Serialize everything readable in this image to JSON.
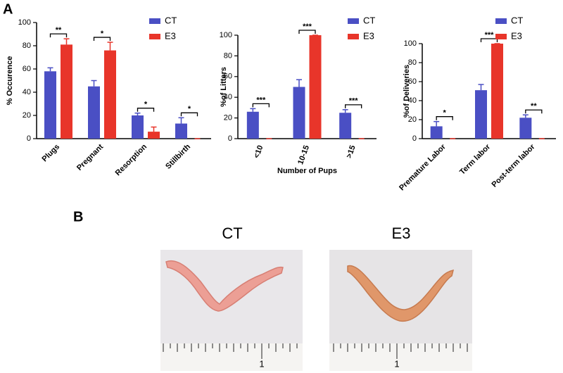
{
  "panel_a": "A",
  "panel_b": "B",
  "chart_data": [
    {
      "type": "bar",
      "ylabel": "% Occurence",
      "categories": [
        "Plugs",
        "Pregnant",
        "Resorption",
        "Stillbirth"
      ],
      "series": [
        {
          "name": "CT",
          "color": "#4a4fc4",
          "values": [
            58,
            45,
            20,
            13
          ],
          "errors": [
            3,
            5,
            2,
            5
          ]
        },
        {
          "name": "E3",
          "color": "#e8352a",
          "values": [
            81,
            76,
            6,
            0
          ],
          "errors": [
            5,
            7,
            4,
            0
          ]
        }
      ],
      "significance": [
        "**",
        "*",
        "*",
        "*"
      ],
      "ylim": [
        0,
        100
      ],
      "yticks": [
        0,
        20,
        40,
        60,
        80,
        100
      ],
      "legend": "top-right"
    },
    {
      "type": "bar",
      "ylabel": "%of Litters",
      "xlabel": "Number of Pups",
      "categories": [
        "<10",
        "10-15",
        ">15"
      ],
      "series": [
        {
          "name": "CT",
          "color": "#4a4fc4",
          "values": [
            26,
            50,
            25
          ],
          "errors": [
            3,
            7,
            3
          ]
        },
        {
          "name": "E3",
          "color": "#e8352a",
          "values": [
            0,
            100,
            0
          ],
          "errors": [
            0,
            0,
            0
          ]
        }
      ],
      "significance": [
        "***",
        "***",
        "***"
      ],
      "ylim": [
        0,
        100
      ],
      "yticks": [
        0,
        20,
        40,
        60,
        80,
        100
      ],
      "legend": "top-right"
    },
    {
      "type": "bar",
      "ylabel": "%of Deliveries",
      "categories": [
        "Premature Labor",
        "Term labor",
        "Post-term labor"
      ],
      "series": [
        {
          "name": "CT",
          "color": "#4a4fc4",
          "values": [
            13,
            51,
            22
          ],
          "errors": [
            5,
            6,
            3
          ]
        },
        {
          "name": "E3",
          "color": "#e8352a",
          "values": [
            0,
            100,
            0
          ],
          "errors": [
            0,
            0,
            0
          ]
        }
      ],
      "significance": [
        "*",
        "***",
        "**"
      ],
      "ylim": [
        0,
        100
      ],
      "yticks": [
        0,
        20,
        40,
        60,
        80,
        100
      ],
      "legend": "top-right"
    }
  ],
  "photos": [
    {
      "caption": "CT",
      "ruler_label": "1"
    },
    {
      "caption": "E3",
      "ruler_label": "1"
    }
  ]
}
